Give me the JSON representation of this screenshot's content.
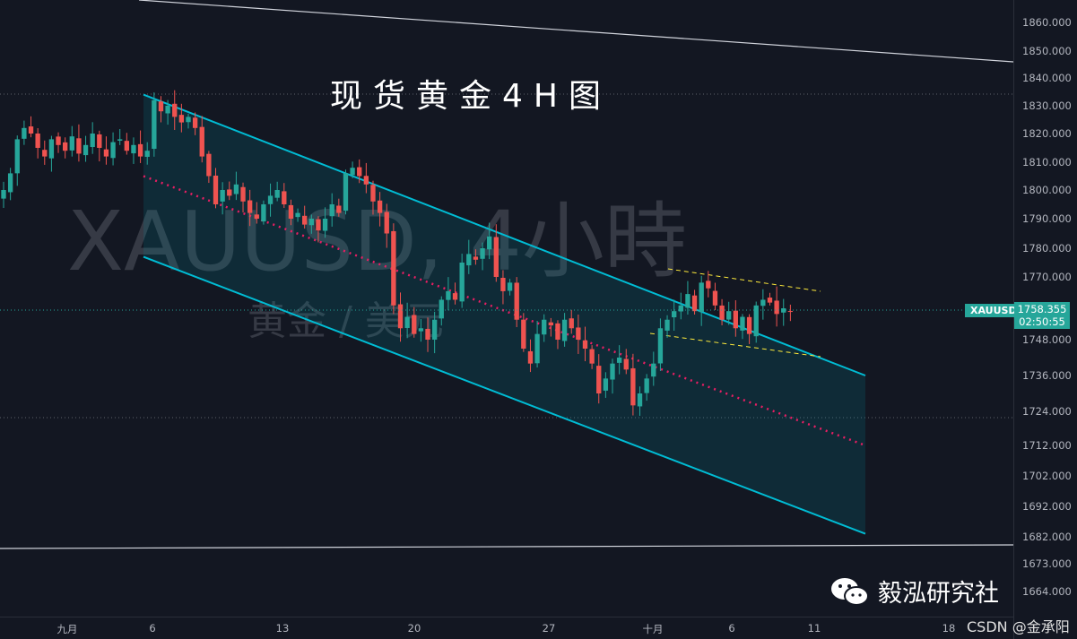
{
  "title": "现货黄金4H图",
  "watermark": {
    "symbol": "XAUUSD, 4小時",
    "pair": "黄金 / 美元"
  },
  "symbol_tag": "XAUUSD",
  "last_price": "1758.355",
  "countdown": "02:50:55",
  "brand": "毅泓研究社",
  "credit": "CSDN @金承阳",
  "colors": {
    "background": "#131722",
    "up": "#26a69a",
    "down": "#ef5350",
    "channel": "#00bcd4",
    "midline": "#e91e63",
    "wedge": "#ffeb3b"
  },
  "chart_data": {
    "type": "candlestick",
    "timeframe": "4H",
    "price_ticks": [
      "1860.000",
      "1850.000",
      "1840.000",
      "1830.000",
      "1820.000",
      "1810.000",
      "1800.000",
      "1790.000",
      "1780.000",
      "1770.000",
      "1748.000",
      "1736.000",
      "1724.000",
      "1712.000",
      "1702.000",
      "1692.000",
      "1682.000",
      "1673.000",
      "1664.000"
    ],
    "time_ticks": [
      "九月",
      "6",
      "13",
      "20",
      "27",
      "十月",
      "6",
      "11",
      "18"
    ],
    "closes": [
      1800,
      1806,
      1818,
      1822,
      1820,
      1815,
      1812,
      1818,
      1816,
      1814,
      1819,
      1813,
      1816,
      1820,
      1815,
      1812,
      1817,
      1818,
      1814,
      1816,
      1812,
      1814,
      1832,
      1828,
      1830,
      1826,
      1824,
      1826,
      1822,
      1812,
      1805,
      1795,
      1800,
      1798,
      1802,
      1796,
      1792,
      1790,
      1795,
      1798,
      1800,
      1795,
      1790,
      1792,
      1788,
      1790,
      1786,
      1790,
      1795,
      1792,
      1806,
      1808,
      1805,
      1802,
      1796,
      1792,
      1785,
      1760,
      1752,
      1756,
      1750,
      1752,
      1748,
      1755,
      1762,
      1765,
      1762,
      1775,
      1778,
      1776,
      1780,
      1784,
      1770,
      1765,
      1768,
      1755,
      1745,
      1740,
      1750,
      1755,
      1753,
      1748,
      1755,
      1752,
      1748,
      1745,
      1740,
      1730,
      1735,
      1740,
      1742,
      1738,
      1726,
      1730,
      1735,
      1740,
      1752,
      1755,
      1758,
      1760,
      1764,
      1758,
      1768,
      1766,
      1760,
      1755,
      1758,
      1752,
      1756,
      1750,
      1760,
      1762,
      1761,
      1757,
      1759,
      1758
    ],
    "channel": {
      "upper": [
        1834,
        1736
      ],
      "middle": [
        1805,
        1712
      ],
      "lower": [
        1777,
        1683
      ]
    },
    "lines": [
      "descending regression channel",
      "descending wedge (dashed yellow)",
      "long-term trendlines (white)"
    ]
  }
}
